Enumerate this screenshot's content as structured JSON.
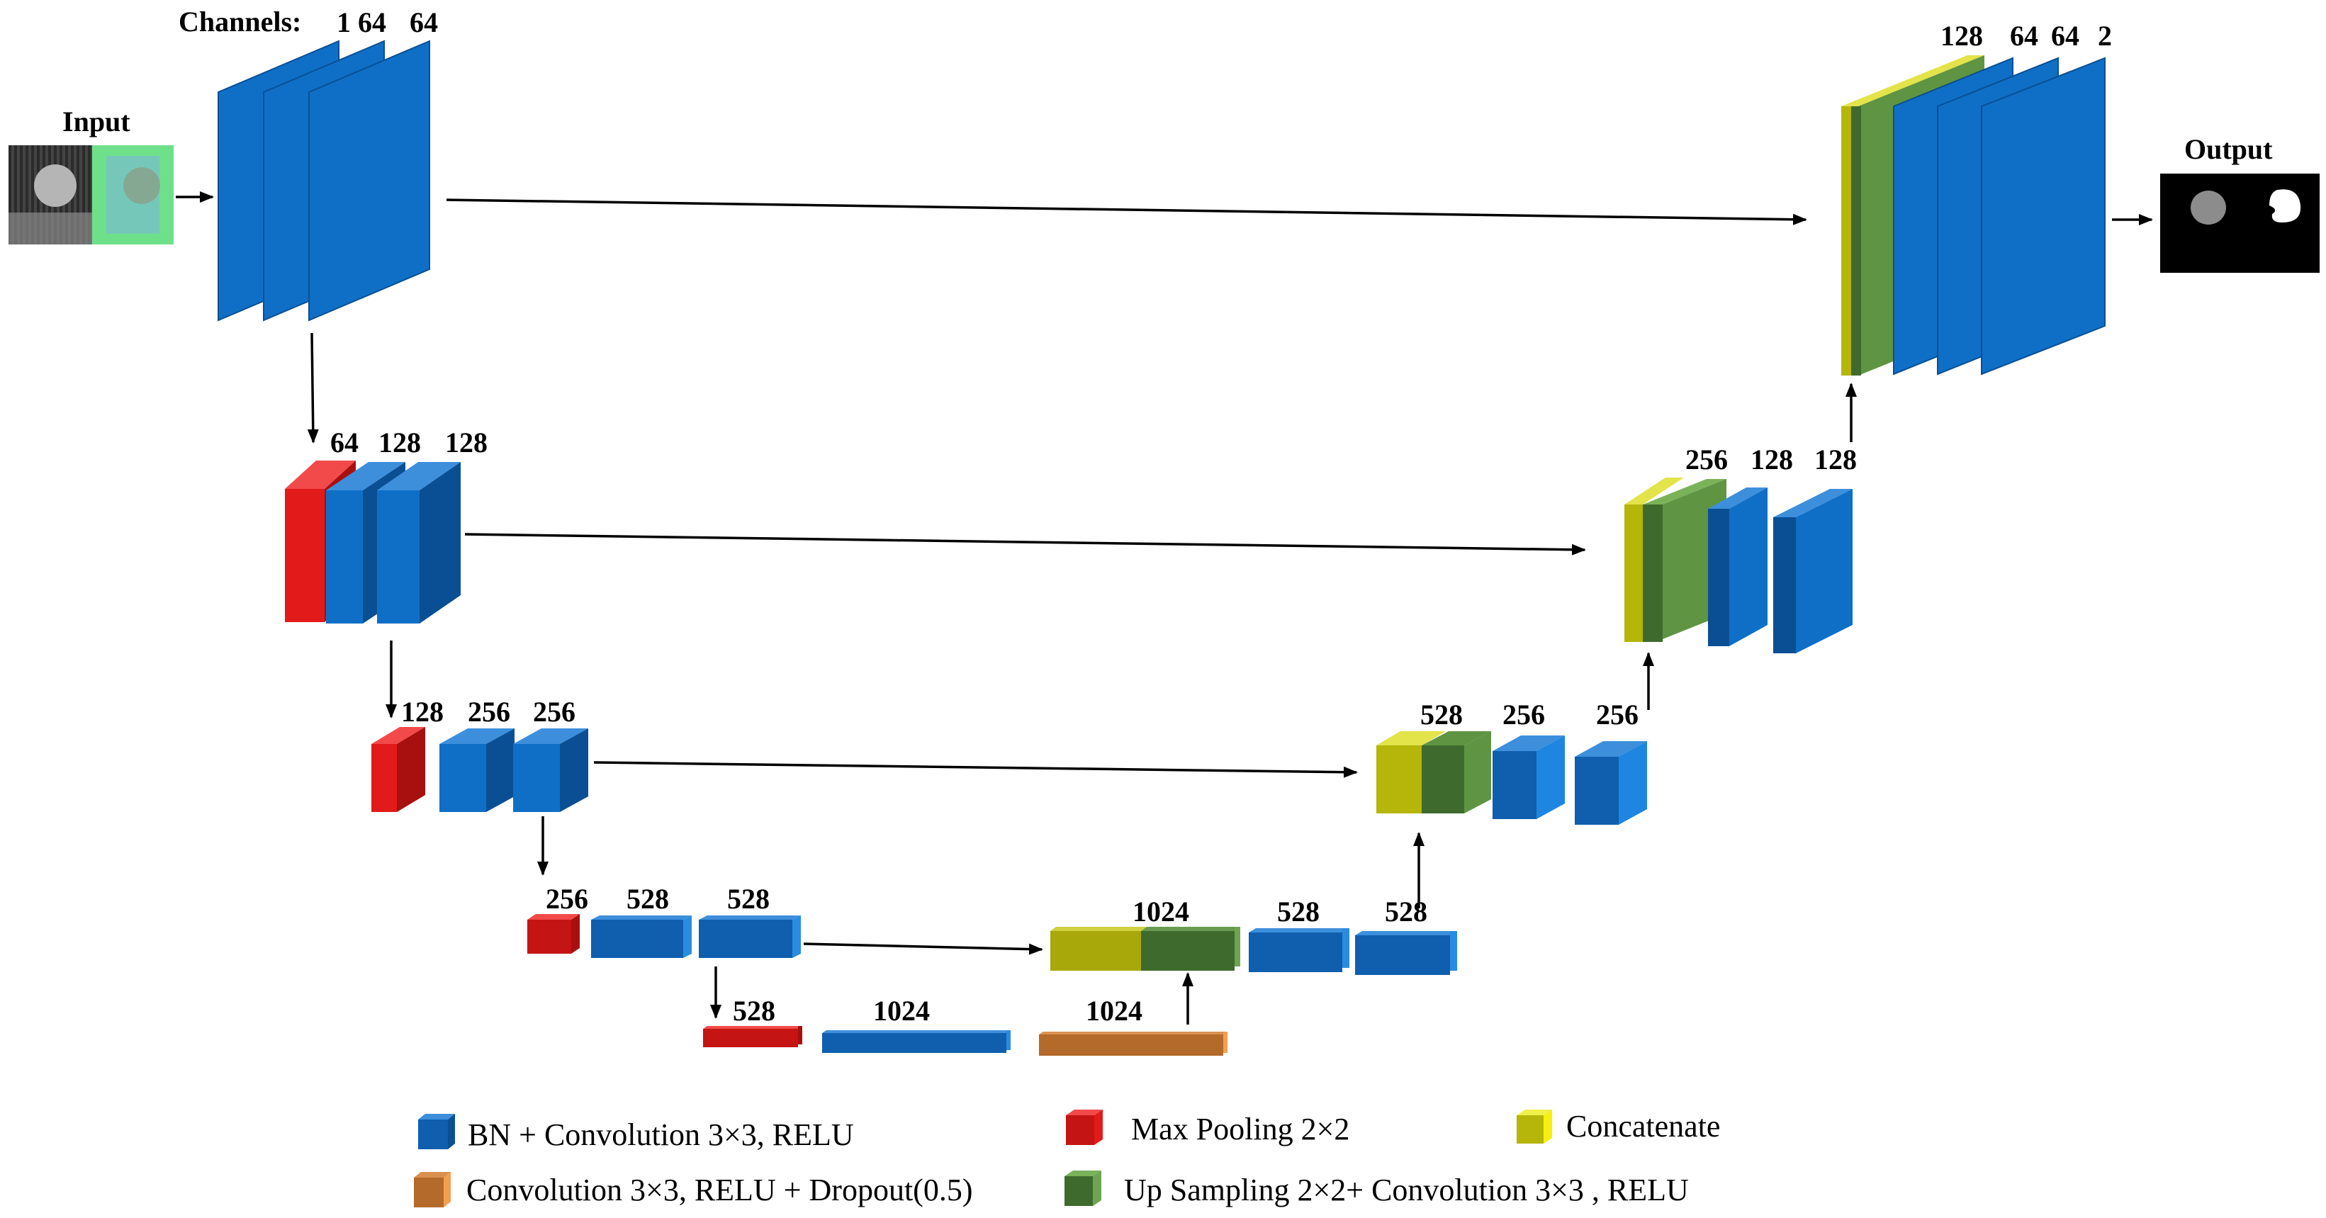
{
  "labels": {
    "channels": "Channels:",
    "input": "Input",
    "output": "Output"
  },
  "encoder": {
    "level1": [
      "1",
      "64",
      "64"
    ],
    "level2": [
      "64",
      "128",
      "128"
    ],
    "level3": [
      "128",
      "256",
      "256"
    ],
    "level4": [
      "256",
      "528",
      "528"
    ]
  },
  "bottleneck": [
    "528",
    "1024",
    "1024"
  ],
  "decoder": {
    "level4": [
      "1024",
      "528",
      "528"
    ],
    "level3": [
      "528",
      "256",
      "256"
    ],
    "level2": [
      "256",
      "128",
      "128"
    ],
    "level1": [
      "128",
      "64",
      "64",
      "2"
    ]
  },
  "legend": {
    "conv_bn": "BN + Convolution 3×3,  RELU",
    "maxpool": "Max Pooling 2×2",
    "concat": "Concatenate",
    "dropout": "Convolution 3×3,  RELU + Dropout(0.5)",
    "upsample": "Up Sampling 2×2+ Convolution 3×3 ,  RELU"
  },
  "colors": {
    "conv": "#0f6fc6",
    "pool": "#e21a1a",
    "concat": "#b5b50a",
    "dropout": "#b46a2a",
    "upsample": "#5e9442"
  }
}
